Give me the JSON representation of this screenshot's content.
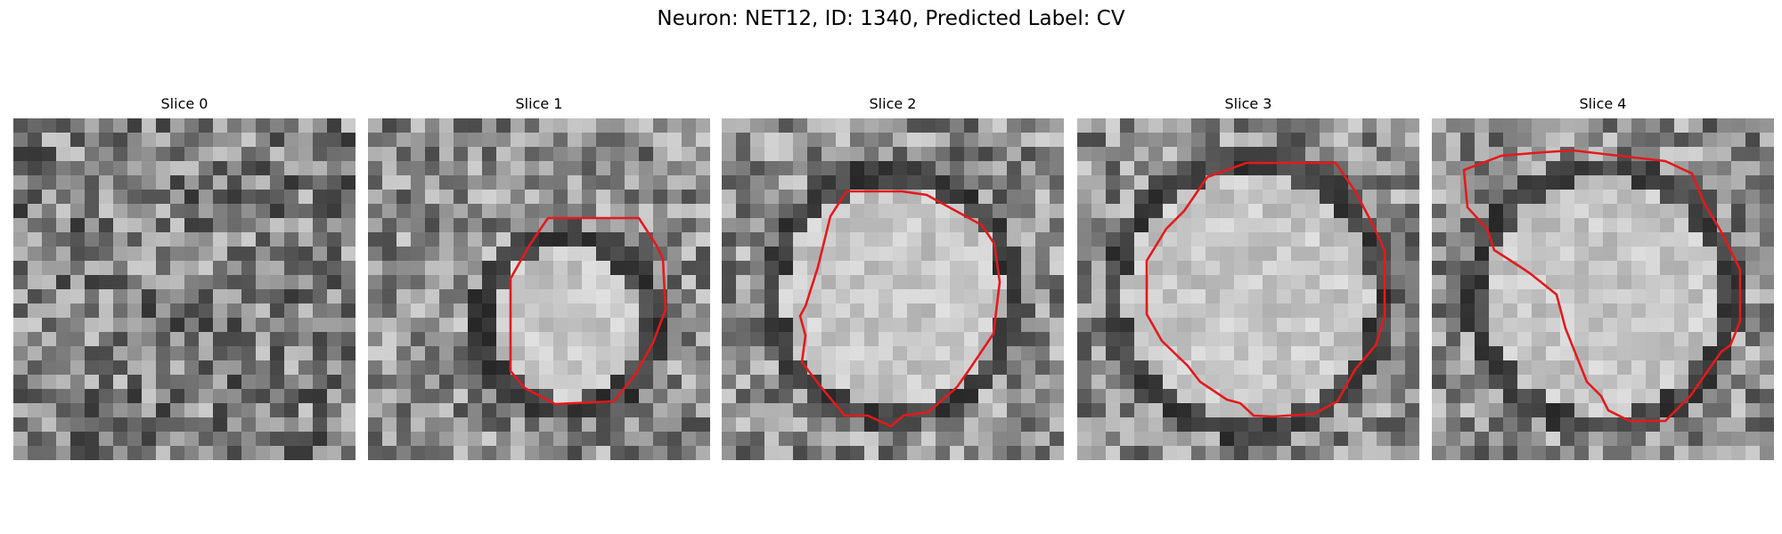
{
  "figure": {
    "title": "Neuron: NET12, ID: 1340, Predicted Label: CV"
  },
  "slices": [
    {
      "title": "Slice 0",
      "has_contour": false,
      "blob_radius": 0.0
    },
    {
      "title": "Slice 1",
      "has_contour": true,
      "blob_radius": 0.22
    },
    {
      "title": "Slice 2",
      "has_contour": true,
      "blob_radius": 0.32
    },
    {
      "title": "Slice 3",
      "has_contour": true,
      "blob_radius": 0.36
    },
    {
      "title": "Slice 4",
      "has_contour": true,
      "blob_radius": 0.34
    }
  ],
  "colors": {
    "contour": "#e31a1c",
    "background": "#ffffff"
  }
}
